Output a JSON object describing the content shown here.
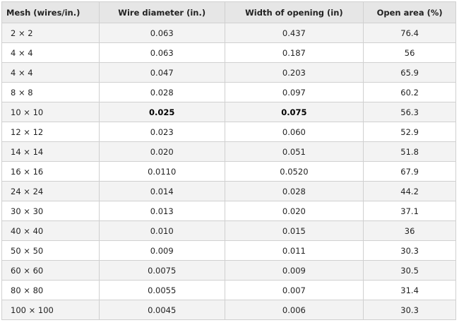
{
  "table": {
    "header": [
      "Mesh (wires/in.)",
      "Wire diameter (in.)",
      "Width of opening (in)",
      "Open area (%)"
    ],
    "rows": [
      [
        "2 × 2",
        "0.063",
        "0.437",
        "76.4"
      ],
      [
        "4 × 4",
        "0.063",
        "0.187",
        "56"
      ],
      [
        "4 × 4",
        "0.047",
        "0.203",
        "65.9"
      ],
      [
        "8 × 8",
        "0.028",
        "0.097",
        "60.2"
      ],
      [
        "10 × 10",
        "0.025",
        "0.075",
        "56.3"
      ],
      [
        "12 × 12",
        "0.023",
        "0.060",
        "52.9"
      ],
      [
        "14 × 14",
        "0.020",
        "0.051",
        "51.8"
      ],
      [
        "16 × 16",
        "0.0110",
        "0.0520",
        "67.9"
      ],
      [
        "24 × 24",
        "0.014",
        "0.028",
        "44.2"
      ],
      [
        "30 × 30",
        "0.013",
        "0.020",
        "37.1"
      ],
      [
        "40 × 40",
        "0.010",
        "0.015",
        "36"
      ],
      [
        "50 × 50",
        "0.009",
        "0.011",
        "30.3"
      ],
      [
        "60 × 60",
        "0.0075",
        "0.009",
        "30.5"
      ],
      [
        "80 × 80",
        "0.0055",
        "0.007",
        "31.4"
      ],
      [
        "100 × 100",
        "0.0045",
        "0.006",
        "30.3"
      ]
    ]
  }
}
